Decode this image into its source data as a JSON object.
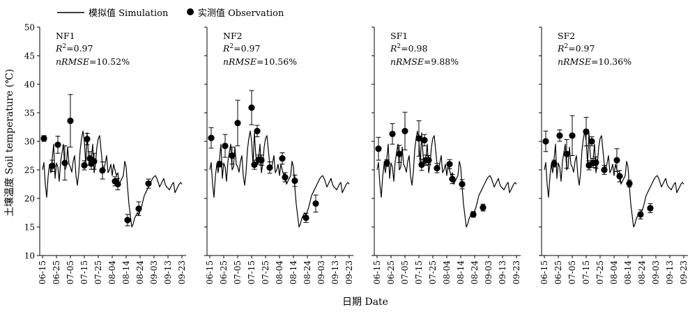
{
  "legend": {
    "simulation_label": "模拟值 Simulation",
    "observation_label": "实测值 Observation"
  },
  "axes": {
    "ylabel": "土壤温度 Soil temperature (℃)",
    "xlabel": "日期 Date",
    "ylim": [
      10,
      50
    ],
    "yticks": [
      "10",
      "15",
      "20",
      "25",
      "30",
      "35",
      "40",
      "45",
      "50"
    ],
    "xticks": [
      "06-15",
      "06-25",
      "07-05",
      "07-15",
      "07-25",
      "08-04",
      "08-14",
      "08-24",
      "09-03",
      "09-13",
      "09-23"
    ]
  },
  "chart_data": [
    {
      "type": "line",
      "title": "NF1",
      "stats": {
        "r2_prefix": "R",
        "r2_sup": "2",
        "r2_value": "=0.97",
        "nrmse_name": "nRMSE",
        "nrmse_value": "=10.52%"
      },
      "simulation": {
        "x": [
          0,
          1,
          2,
          3,
          4,
          5,
          6,
          7,
          8,
          9,
          10,
          11,
          12,
          13,
          14,
          15,
          16,
          17,
          18,
          19,
          20,
          21,
          22,
          23,
          24,
          25,
          26,
          27,
          28,
          29,
          30,
          31,
          32,
          33,
          34,
          35,
          36,
          37,
          38,
          39,
          40,
          41,
          42,
          43,
          44,
          45,
          46,
          47,
          48,
          49,
          50,
          51,
          52,
          53,
          54,
          55,
          56,
          57,
          58,
          59,
          60,
          61,
          62,
          63,
          64,
          65,
          66,
          67,
          68,
          69,
          70,
          71,
          72,
          73,
          74,
          75,
          76,
          77,
          78,
          79,
          80,
          81,
          82,
          83,
          84,
          85,
          86,
          87,
          88,
          89,
          90,
          91,
          92,
          93,
          94,
          95,
          96,
          97,
          98,
          99,
          100
        ],
        "y": [
          25.0,
          26.3,
          22.5,
          20.2,
          23.8,
          26.0,
          24.5,
          27.0,
          29.5,
          23.5,
          26.2,
          25.5,
          23.0,
          26.5,
          28.0,
          29.5,
          25.0,
          25.5,
          29.0,
          26.0,
          25.5,
          24.6,
          26.5,
          27.5,
          24.0,
          22.3,
          24.5,
          28.5,
          30.5,
          31.8,
          30.0,
          26.0,
          31.5,
          27.5,
          26.0,
          27.0,
          29.5,
          24.5,
          26.0,
          29.0,
          30.5,
          31.0,
          28.5,
          26.0,
          25.0,
          26.2,
          27.5,
          24.5,
          25.0,
          26.0,
          24.0,
          26.0,
          25.0,
          24.0,
          24.5,
          22.5,
          23.0,
          23.5,
          24.0,
          26.5,
          25.5,
          22.0,
          19.0,
          17.0,
          15.0,
          15.5,
          16.5,
          17.0,
          17.5,
          17.0,
          17.8,
          18.5,
          19.5,
          20.5,
          21.0,
          21.5,
          22.0,
          22.5,
          23.0,
          23.5,
          23.8,
          24.0,
          23.5,
          22.8,
          22.0,
          22.5,
          23.0,
          23.5,
          22.5,
          22.0,
          21.8,
          21.5,
          22.0,
          22.5,
          22.8,
          21.0,
          21.5,
          22.0,
          22.5,
          22.8,
          22.5
        ]
      },
      "observation": {
        "x": [
          1,
          7,
          11,
          16,
          20,
          30,
          32,
          34,
          35,
          37,
          43,
          52,
          54,
          61,
          69,
          76
        ],
        "y": [
          30.5,
          25.7,
          29.4,
          26.2,
          33.6,
          25.8,
          30.4,
          27.0,
          26.1,
          26.5,
          24.9,
          23.0,
          22.5,
          16.2,
          18.2,
          22.6
        ],
        "err": [
          0.5,
          1.0,
          1.5,
          3.0,
          4.6,
          0.8,
          1.0,
          1.2,
          1.0,
          1.4,
          1.5,
          0.8,
          1.0,
          1.0,
          1.2,
          0.8
        ]
      }
    },
    {
      "type": "line",
      "title": "NF2",
      "stats": {
        "r2_prefix": "R",
        "r2_sup": "2",
        "r2_value": "=0.97",
        "nrmse_name": "nRMSE",
        "nrmse_value": "=10.56%"
      },
      "simulation": {
        "x": [
          0,
          1,
          2,
          3,
          4,
          5,
          6,
          7,
          8,
          9,
          10,
          11,
          12,
          13,
          14,
          15,
          16,
          17,
          18,
          19,
          20,
          21,
          22,
          23,
          24,
          25,
          26,
          27,
          28,
          29,
          30,
          31,
          32,
          33,
          34,
          35,
          36,
          37,
          38,
          39,
          40,
          41,
          42,
          43,
          44,
          45,
          46,
          47,
          48,
          49,
          50,
          51,
          52,
          53,
          54,
          55,
          56,
          57,
          58,
          59,
          60,
          61,
          62,
          63,
          64,
          65,
          66,
          67,
          68,
          69,
          70,
          71,
          72,
          73,
          74,
          75,
          76,
          77,
          78,
          79,
          80,
          81,
          82,
          83,
          84,
          85,
          86,
          87,
          88,
          89,
          90,
          91,
          92,
          93,
          94,
          95,
          96,
          97,
          98,
          99,
          100
        ],
        "y": [
          25.0,
          26.3,
          22.5,
          20.2,
          23.8,
          26.0,
          24.5,
          27.0,
          29.5,
          23.5,
          26.2,
          25.5,
          23.0,
          26.5,
          28.0,
          29.5,
          25.0,
          25.5,
          29.0,
          26.0,
          25.5,
          24.6,
          26.5,
          27.5,
          24.0,
          22.3,
          24.5,
          28.5,
          30.5,
          31.8,
          30.0,
          26.0,
          31.5,
          27.5,
          26.0,
          27.0,
          29.5,
          24.5,
          26.0,
          29.0,
          30.5,
          31.0,
          28.5,
          26.0,
          25.0,
          26.2,
          27.5,
          24.5,
          25.0,
          26.0,
          24.0,
          26.0,
          25.0,
          24.0,
          24.5,
          22.5,
          23.0,
          23.5,
          24.0,
          26.5,
          25.5,
          22.0,
          19.0,
          17.0,
          15.0,
          15.5,
          16.5,
          17.0,
          17.5,
          17.0,
          17.8,
          18.5,
          19.5,
          20.5,
          21.0,
          21.5,
          22.0,
          22.5,
          23.0,
          23.5,
          23.8,
          24.0,
          23.5,
          22.8,
          22.0,
          22.5,
          23.0,
          23.5,
          22.5,
          22.0,
          21.8,
          21.5,
          22.0,
          22.5,
          22.8,
          21.0,
          21.5,
          22.0,
          22.5,
          22.8,
          22.5
        ]
      },
      "observation": {
        "x": [
          1,
          7,
          11,
          16,
          20,
          30,
          32,
          34,
          35,
          37,
          43,
          52,
          54,
          61,
          69,
          76
        ],
        "y": [
          30.6,
          26.0,
          29.2,
          27.5,
          33.2,
          35.9,
          25.9,
          31.8,
          26.8,
          26.7,
          25.4,
          27.0,
          23.7,
          23.1,
          16.6,
          19.1
        ],
        "err": [
          1.8,
          0.5,
          2.0,
          1.5,
          4.0,
          3.0,
          0.8,
          1.0,
          0.8,
          0.9,
          1.0,
          1.0,
          0.8,
          1.0,
          0.8,
          1.5
        ]
      }
    },
    {
      "type": "line",
      "title": "SF1",
      "stats": {
        "r2_prefix": "R",
        "r2_sup": "2",
        "r2_value": "=0.98",
        "nrmse_name": "nRMSE",
        "nrmse_value": "=9.88%"
      },
      "simulation": {
        "x": [
          0,
          1,
          2,
          3,
          4,
          5,
          6,
          7,
          8,
          9,
          10,
          11,
          12,
          13,
          14,
          15,
          16,
          17,
          18,
          19,
          20,
          21,
          22,
          23,
          24,
          25,
          26,
          27,
          28,
          29,
          30,
          31,
          32,
          33,
          34,
          35,
          36,
          37,
          38,
          39,
          40,
          41,
          42,
          43,
          44,
          45,
          46,
          47,
          48,
          49,
          50,
          51,
          52,
          53,
          54,
          55,
          56,
          57,
          58,
          59,
          60,
          61,
          62,
          63,
          64,
          65,
          66,
          67,
          68,
          69,
          70,
          71,
          72,
          73,
          74,
          75,
          76,
          77,
          78,
          79,
          80,
          81,
          82,
          83,
          84,
          85,
          86,
          87,
          88,
          89,
          90,
          91,
          92,
          93,
          94,
          95,
          96,
          97,
          98,
          99,
          100
        ],
        "y": [
          25.0,
          26.3,
          22.5,
          20.2,
          23.8,
          26.0,
          24.5,
          27.0,
          29.5,
          23.5,
          26.2,
          25.5,
          23.0,
          26.5,
          28.0,
          29.5,
          25.0,
          25.5,
          29.0,
          26.0,
          25.5,
          24.6,
          26.5,
          27.5,
          24.0,
          22.3,
          24.5,
          28.5,
          30.5,
          31.8,
          30.0,
          26.0,
          31.5,
          27.5,
          26.0,
          27.0,
          29.5,
          24.5,
          26.0,
          29.0,
          30.5,
          31.0,
          28.5,
          26.0,
          25.0,
          26.2,
          27.5,
          24.5,
          25.0,
          26.0,
          24.0,
          26.0,
          25.0,
          24.0,
          24.5,
          22.5,
          23.0,
          23.5,
          24.0,
          26.5,
          25.5,
          22.0,
          19.0,
          17.0,
          15.0,
          15.5,
          16.5,
          17.0,
          17.5,
          17.0,
          17.8,
          18.5,
          19.5,
          20.5,
          21.0,
          21.5,
          22.0,
          22.5,
          23.0,
          23.5,
          23.8,
          24.0,
          23.5,
          22.8,
          22.0,
          22.5,
          23.0,
          23.5,
          22.5,
          22.0,
          21.8,
          21.5,
          22.0,
          22.5,
          22.8,
          21.0,
          21.5,
          22.0,
          22.5,
          22.8,
          22.5
        ]
      },
      "observation": {
        "x": [
          1,
          7,
          11,
          16,
          20,
          30,
          32,
          34,
          35,
          37,
          43,
          52,
          54,
          61,
          69,
          76
        ],
        "y": [
          28.7,
          26.2,
          31.3,
          27.8,
          31.8,
          30.5,
          25.9,
          30.2,
          26.7,
          26.7,
          25.3,
          26.0,
          23.4,
          22.5,
          17.2,
          18.4
        ],
        "err": [
          2.0,
          0.6,
          1.8,
          1.5,
          3.3,
          3.1,
          1.0,
          1.0,
          0.9,
          0.8,
          0.8,
          0.8,
          0.8,
          0.8,
          0.5,
          0.6
        ]
      }
    },
    {
      "type": "line",
      "title": "SF2",
      "stats": {
        "r2_prefix": "R",
        "r2_sup": "2",
        "r2_value": "=0.97",
        "nrmse_name": "nRMSE",
        "nrmse_value": "=10.36%"
      },
      "simulation": {
        "x": [
          0,
          1,
          2,
          3,
          4,
          5,
          6,
          7,
          8,
          9,
          10,
          11,
          12,
          13,
          14,
          15,
          16,
          17,
          18,
          19,
          20,
          21,
          22,
          23,
          24,
          25,
          26,
          27,
          28,
          29,
          30,
          31,
          32,
          33,
          34,
          35,
          36,
          37,
          38,
          39,
          40,
          41,
          42,
          43,
          44,
          45,
          46,
          47,
          48,
          49,
          50,
          51,
          52,
          53,
          54,
          55,
          56,
          57,
          58,
          59,
          60,
          61,
          62,
          63,
          64,
          65,
          66,
          67,
          68,
          69,
          70,
          71,
          72,
          73,
          74,
          75,
          76,
          77,
          78,
          79,
          80,
          81,
          82,
          83,
          84,
          85,
          86,
          87,
          88,
          89,
          90,
          91,
          92,
          93,
          94,
          95,
          96,
          97,
          98,
          99,
          100
        ],
        "y": [
          25.0,
          26.3,
          22.5,
          20.2,
          23.8,
          26.0,
          24.5,
          27.0,
          29.5,
          23.5,
          26.2,
          25.5,
          23.0,
          26.5,
          28.0,
          29.5,
          25.0,
          25.5,
          29.0,
          26.0,
          25.5,
          24.6,
          26.5,
          27.5,
          24.0,
          22.3,
          24.5,
          28.5,
          30.5,
          31.8,
          30.0,
          26.0,
          31.5,
          27.5,
          26.0,
          27.0,
          29.5,
          24.5,
          26.0,
          29.0,
          30.5,
          31.0,
          28.5,
          26.0,
          25.0,
          26.2,
          27.5,
          24.5,
          25.0,
          26.0,
          24.0,
          26.0,
          25.0,
          24.0,
          24.5,
          22.5,
          23.0,
          23.5,
          24.0,
          26.5,
          25.5,
          22.0,
          19.0,
          17.0,
          15.0,
          15.5,
          16.5,
          17.0,
          17.5,
          17.0,
          17.8,
          18.5,
          19.5,
          20.5,
          21.0,
          21.5,
          22.0,
          22.5,
          23.0,
          23.5,
          23.8,
          24.0,
          23.5,
          22.8,
          22.0,
          22.5,
          23.0,
          23.5,
          22.5,
          22.0,
          21.8,
          21.5,
          22.0,
          22.5,
          22.8,
          21.0,
          21.5,
          22.0,
          22.5,
          22.8,
          22.5
        ]
      },
      "observation": {
        "x": [
          1,
          7,
          11,
          16,
          20,
          30,
          32,
          34,
          35,
          37,
          43,
          52,
          54,
          61,
          69,
          76
        ],
        "y": [
          30.0,
          26.1,
          31.0,
          27.8,
          31.0,
          31.7,
          25.8,
          30.0,
          26.2,
          26.3,
          25.0,
          26.7,
          23.9,
          22.6,
          17.2,
          18.3
        ],
        "err": [
          1.8,
          0.6,
          1.0,
          2.5,
          3.5,
          2.5,
          0.8,
          0.8,
          0.8,
          1.0,
          0.8,
          2.0,
          1.0,
          0.6,
          0.8,
          0.8
        ]
      }
    }
  ]
}
